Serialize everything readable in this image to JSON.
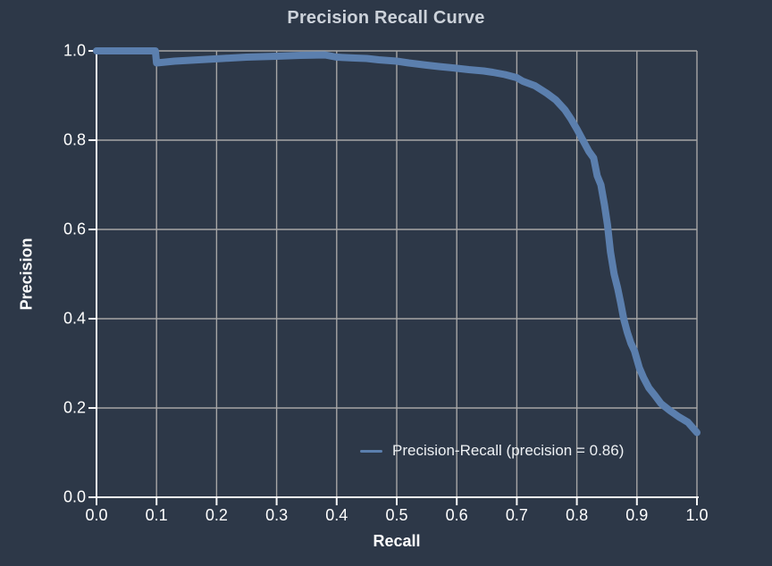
{
  "title": "Precision Recall Curve",
  "colors": {
    "background": "#2d3848",
    "curve": "#5b7fae",
    "grid": "#a6a6a6",
    "axis": "#f7f7f7",
    "tick_text": "#ffffff",
    "title_text": "#ccd2da",
    "legend_text": "#eef1f4"
  },
  "chart_data": {
    "type": "line",
    "title": "Precision Recall Curve",
    "xlabel": "Recall",
    "ylabel": "Precision",
    "xlim": [
      0.0,
      1.0
    ],
    "ylim": [
      0.0,
      1.0
    ],
    "grid": true,
    "x_ticks": [
      "0.0",
      "0.1",
      "0.2",
      "0.3",
      "0.4",
      "0.5",
      "0.6",
      "0.7",
      "0.8",
      "0.9",
      "1.0"
    ],
    "y_ticks": [
      "0.0",
      "0.2",
      "0.4",
      "0.6",
      "0.8",
      "1.0"
    ],
    "legend": {
      "position": "lower center",
      "frame": false,
      "entries": [
        {
          "label": "Precision-Recall (precision = 0.86)",
          "color": "#5b7fae"
        }
      ]
    },
    "series": [
      {
        "name": "Precision-Recall (precision = 0.86)",
        "line_width": 8,
        "x": [
          0.0,
          0.05,
          0.098,
          0.1,
          0.13,
          0.17,
          0.21,
          0.25,
          0.3,
          0.34,
          0.38,
          0.4,
          0.43,
          0.45,
          0.47,
          0.5,
          0.52,
          0.55,
          0.57,
          0.6,
          0.62,
          0.645,
          0.66,
          0.68,
          0.7,
          0.71,
          0.73,
          0.75,
          0.765,
          0.78,
          0.79,
          0.8,
          0.81,
          0.82,
          0.828,
          0.834,
          0.84,
          0.846,
          0.851,
          0.856,
          0.862,
          0.868,
          0.873,
          0.878,
          0.884,
          0.89,
          0.896,
          0.904,
          0.911,
          0.92,
          0.93,
          0.94,
          0.955,
          0.97,
          0.985,
          1.0
        ],
        "y": [
          1.0,
          1.0,
          1.0,
          0.973,
          0.977,
          0.98,
          0.983,
          0.986,
          0.988,
          0.99,
          0.991,
          0.986,
          0.984,
          0.983,
          0.98,
          0.977,
          0.973,
          0.968,
          0.965,
          0.961,
          0.958,
          0.955,
          0.952,
          0.947,
          0.94,
          0.932,
          0.922,
          0.905,
          0.89,
          0.868,
          0.848,
          0.825,
          0.8,
          0.775,
          0.76,
          0.72,
          0.7,
          0.655,
          0.61,
          0.55,
          0.5,
          0.468,
          0.435,
          0.4,
          0.37,
          0.345,
          0.328,
          0.29,
          0.268,
          0.245,
          0.228,
          0.21,
          0.194,
          0.18,
          0.168,
          0.145
        ]
      }
    ]
  }
}
